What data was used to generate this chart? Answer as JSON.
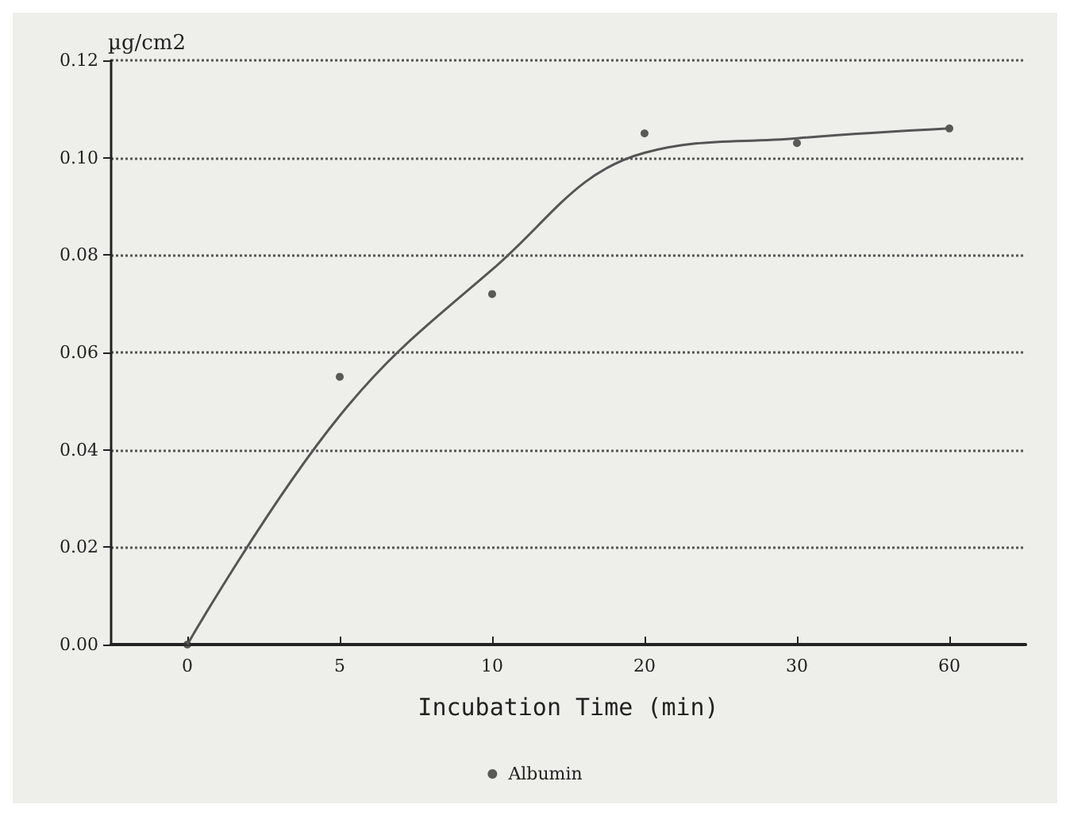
{
  "chart_data": {
    "type": "scatter",
    "ylabel": "µg/cm2",
    "xlabel": "Incubation Time (min)",
    "categories": [
      "0",
      "5",
      "10",
      "20",
      "30",
      "60"
    ],
    "series": [
      {
        "name": "Albumin",
        "marker": "circle",
        "color": "#333333",
        "values": [
          0.0,
          0.055,
          0.072,
          0.105,
          0.103,
          0.106
        ]
      },
      {
        "type": "line",
        "marker": "none",
        "line_style": "solid",
        "color": "#555555",
        "values": [
          0.0,
          0.047,
          0.077,
          0.101,
          0.104,
          0.106
        ]
      }
    ],
    "ylim": [
      0,
      0.12
    ],
    "yticks": [
      {
        "value": 0,
        "label": "0.00"
      },
      {
        "value": 0.02,
        "label": "0.02"
      },
      {
        "value": 0.04,
        "label": "0.04"
      },
      {
        "value": 0.06,
        "label": "0.06"
      },
      {
        "value": 0.08,
        "label": "0.08"
      },
      {
        "value": 0.1,
        "label": "0.10"
      },
      {
        "value": 0.12,
        "label": "0.12"
      }
    ],
    "grid": "y",
    "legend": "bottom"
  }
}
